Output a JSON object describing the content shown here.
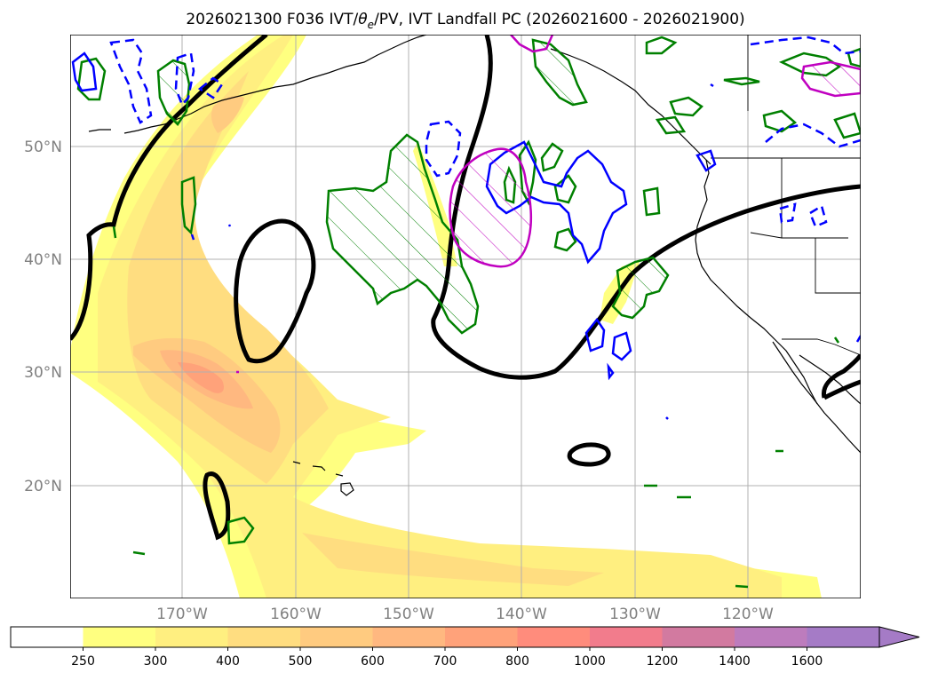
{
  "title": {
    "prefix": "2026021300 F036 IVT/",
    "theta": "θ",
    "theta_sub": "e",
    "suffix": "/PV, IVT Landfall PC (2026021600 - 2026021900)"
  },
  "map": {
    "lat_labels": [
      "50°N",
      "40°N",
      "30°N",
      "20°N"
    ],
    "lon_labels": [
      "170°W",
      "160°W",
      "150°W",
      "140°W",
      "130°W",
      "120°W"
    ]
  },
  "colorbar": {
    "levels": [
      "250",
      "300",
      "400",
      "500",
      "600",
      "700",
      "800",
      "1000",
      "1200",
      "1400",
      "1600"
    ],
    "colors": [
      "#ffffff",
      "#ffff80",
      "#ffef80",
      "#ffdd80",
      "#ffcb80",
      "#ffb880",
      "#ffa27a",
      "#ff8c7c",
      "#f27c8c",
      "#d27aa0",
      "#bd7cbd",
      "#a57bc6"
    ],
    "extend": "max"
  },
  "legend_colors": {
    "pv_positive": "#0000ff",
    "pv_negative": "#0000ff",
    "theta_e": "#008000",
    "landfall_pc": "#c000c0",
    "jet_line": "#000000"
  }
}
